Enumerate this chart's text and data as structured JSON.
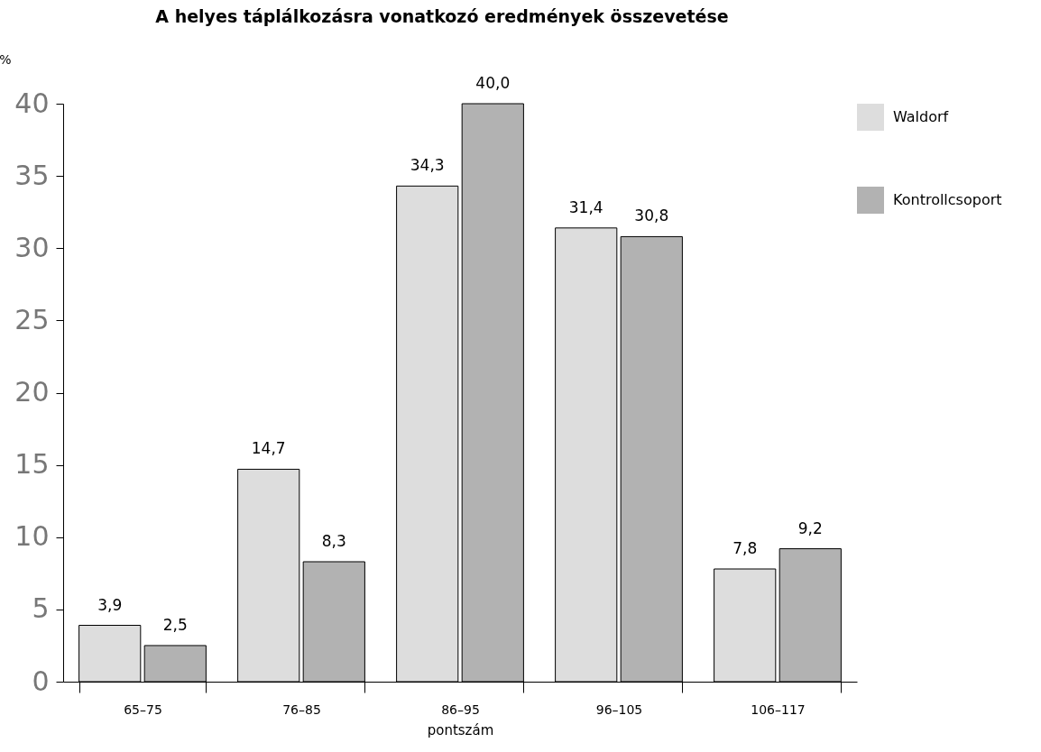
{
  "chart_data": {
    "type": "bar",
    "title": "A helyes táplálkozásra vonatkozó eredmények összevetése",
    "xlabel": "pontszám",
    "ylabel": "%",
    "categories": [
      "65–75",
      "76–85",
      "86–95",
      "96–105",
      "106–117"
    ],
    "series": [
      {
        "name": "Waldorf",
        "color": "#dddddd",
        "values": [
          3.9,
          14.7,
          34.3,
          31.4,
          7.8
        ],
        "value_labels": [
          "3,9",
          "14,7",
          "34,3",
          "31,4",
          "7,8"
        ]
      },
      {
        "name": "Kontrollcsoport",
        "color": "#b2b2b2",
        "values": [
          2.5,
          8.3,
          40.0,
          30.8,
          9.2
        ],
        "value_labels": [
          "2,5",
          "8,3",
          "40,0",
          "30,8",
          "9,2"
        ]
      }
    ],
    "ylim": [
      0,
      40
    ],
    "yticks": [
      0,
      5,
      10,
      15,
      20,
      25,
      30,
      35,
      40
    ],
    "grid": false,
    "legend": "right"
  }
}
